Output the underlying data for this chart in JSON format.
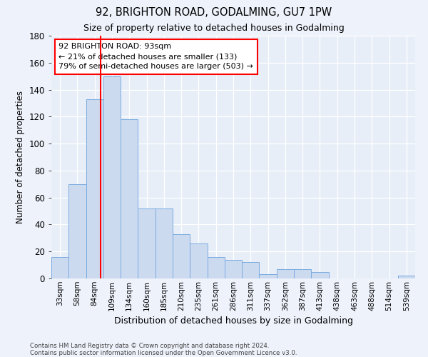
{
  "title1": "92, BRIGHTON ROAD, GODALMING, GU7 1PW",
  "title2": "Size of property relative to detached houses in Godalming",
  "xlabel": "Distribution of detached houses by size in Godalming",
  "ylabel": "Number of detached properties",
  "categories": [
    "33sqm",
    "58sqm",
    "84sqm",
    "109sqm",
    "134sqm",
    "160sqm",
    "185sqm",
    "210sqm",
    "235sqm",
    "261sqm",
    "286sqm",
    "311sqm",
    "337sqm",
    "362sqm",
    "387sqm",
    "413sqm",
    "438sqm",
    "463sqm",
    "488sqm",
    "514sqm",
    "539sqm"
  ],
  "values": [
    16,
    70,
    133,
    150,
    118,
    52,
    52,
    33,
    26,
    16,
    14,
    12,
    3,
    7,
    7,
    5,
    0,
    0,
    0,
    0,
    2
  ],
  "bar_color": "#ccdaf0",
  "bar_edge_color": "#7aabe0",
  "bar_edge_width": 0.7,
  "ylim": [
    0,
    180
  ],
  "yticks": [
    0,
    20,
    40,
    60,
    80,
    100,
    120,
    140,
    160,
    180
  ],
  "red_line_x": 2.36,
  "annotation_line1": "92 BRIGHTON ROAD: 93sqm",
  "annotation_line2": "← 21% of detached houses are smaller (133)",
  "annotation_line3": "79% of semi-detached houses are larger (503) →",
  "footnote1": "Contains HM Land Registry data © Crown copyright and database right 2024.",
  "footnote2": "Contains public sector information licensed under the Open Government Licence v3.0.",
  "background_color": "#eef2fb",
  "plot_bg_color": "#e8eef8",
  "grid_color": "#c8d4e8"
}
